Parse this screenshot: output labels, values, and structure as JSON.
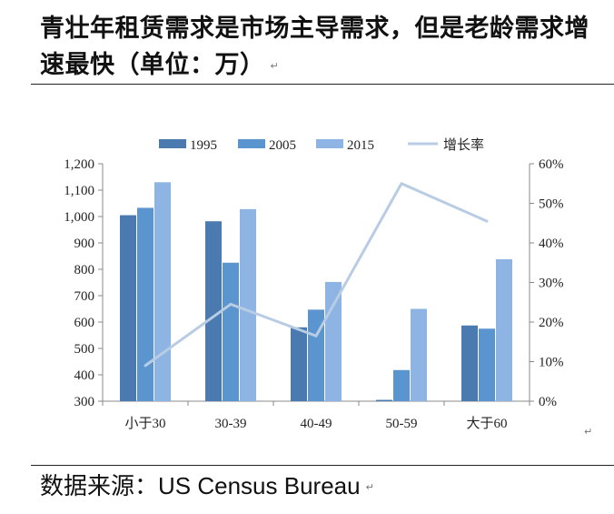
{
  "title": "青壮年租赁需求是市场主导需求，但是老龄需求增速最快（单位：万）",
  "title_mark": "↵",
  "source": {
    "label": "数据来源：",
    "name": "US Census Bureau",
    "mark": "↵"
  },
  "chart_mark": "↵",
  "colors": {
    "1995": "#4a7ab0",
    "2005": "#5b95cf",
    "2015": "#8db4e2",
    "growth": "#b8cce4"
  },
  "chart_data": {
    "type": "bar",
    "categories": [
      "小于30",
      "30-39",
      "40-49",
      "50-59",
      "大于60"
    ],
    "series": [
      {
        "name": "1995",
        "values": [
          1005,
          982,
          580,
          305,
          587
        ]
      },
      {
        "name": "2005",
        "values": [
          1033,
          825,
          647,
          418,
          575
        ]
      },
      {
        "name": "2015",
        "values": [
          1130,
          1028,
          752,
          650,
          838
        ]
      }
    ],
    "line_series": {
      "name": "增长率",
      "values": [
        0.09,
        0.245,
        0.165,
        0.55,
        0.455
      ],
      "axis": "right"
    },
    "ylim": [
      300,
      1200
    ],
    "yticks": [
      "300",
      "400",
      "500",
      "600",
      "700",
      "800",
      "900",
      "1,000",
      "1,100",
      "1,200"
    ],
    "y2lim": [
      0,
      0.6
    ],
    "y2ticks": [
      "0%",
      "10%",
      "20%",
      "30%",
      "40%",
      "50%",
      "60%"
    ],
    "legend": [
      "1995",
      "2005",
      "2015",
      "增长率"
    ],
    "legend_position": "top",
    "grid": false
  }
}
